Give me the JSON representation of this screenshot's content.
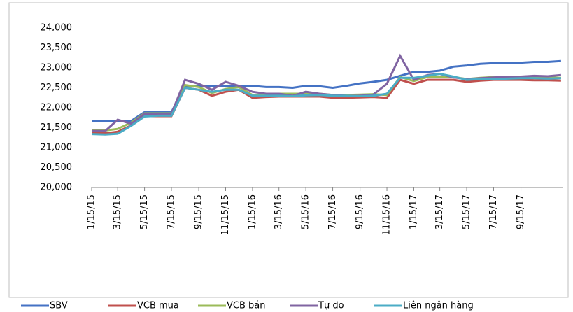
{
  "chart_data": {
    "type": "line",
    "x": [
      "2015-01-15",
      "2015-02-15",
      "2015-03-15",
      "2015-04-15",
      "2015-05-15",
      "2015-06-15",
      "2015-07-15",
      "2015-08-15",
      "2015-09-15",
      "2015-10-15",
      "2015-11-15",
      "2015-12-15",
      "2016-01-15",
      "2016-02-15",
      "2016-03-15",
      "2016-04-15",
      "2016-05-15",
      "2016-06-15",
      "2016-07-15",
      "2016-08-15",
      "2016-09-15",
      "2016-10-15",
      "2016-11-15",
      "2016-12-15",
      "2017-01-15",
      "2017-02-15",
      "2017-03-15",
      "2017-04-15",
      "2017-05-15",
      "2017-06-15",
      "2017-07-15",
      "2017-08-15",
      "2017-09-15",
      "2017-10-15",
      "2017-11-15",
      "2017-12-15"
    ],
    "series": [
      {
        "name": "SBV",
        "color": "#4472c4",
        "values": [
          21673,
          21673,
          21673,
          21673,
          21890,
          21890,
          21890,
          22550,
          22550,
          22550,
          22550,
          22550,
          22550,
          22520,
          22520,
          22500,
          22550,
          22540,
          22500,
          22550,
          22610,
          22650,
          22700,
          22800,
          22900,
          22900,
          22930,
          23030,
          23060,
          23100,
          23120,
          23130,
          23130,
          23150,
          23150,
          23170
        ]
      },
      {
        "name": "VCB mua",
        "color": "#c0504d",
        "values": [
          21360,
          21360,
          21400,
          21560,
          21790,
          21790,
          21790,
          22500,
          22450,
          22300,
          22400,
          22450,
          22250,
          22270,
          22280,
          22280,
          22280,
          22280,
          22250,
          22250,
          22260,
          22270,
          22250,
          22700,
          22600,
          22700,
          22700,
          22700,
          22650,
          22680,
          22700,
          22700,
          22700,
          22690,
          22690,
          22680
        ]
      },
      {
        "name": "VCB bán",
        "color": "#9bbb59",
        "values": [
          21430,
          21430,
          21470,
          21630,
          21860,
          21860,
          21860,
          22570,
          22520,
          22370,
          22470,
          22520,
          22320,
          22340,
          22350,
          22350,
          22350,
          22350,
          22320,
          22320,
          22330,
          22340,
          22320,
          22770,
          22670,
          22770,
          22770,
          22770,
          22720,
          22750,
          22770,
          22770,
          22770,
          22760,
          22760,
          22750
        ]
      },
      {
        "name": "Tự do",
        "color": "#8064a2",
        "values": [
          21420,
          21420,
          21700,
          21600,
          21850,
          21850,
          21850,
          22700,
          22600,
          22450,
          22650,
          22550,
          22400,
          22350,
          22350,
          22300,
          22400,
          22350,
          22320,
          22300,
          22300,
          22330,
          22600,
          23300,
          22700,
          22820,
          22850,
          22760,
          22720,
          22740,
          22760,
          22780,
          22780,
          22800,
          22790,
          22820
        ]
      },
      {
        "name": "Liên ngân hàng",
        "color": "#4bacc6",
        "values": [
          21340,
          21330,
          21350,
          21550,
          21780,
          21800,
          21800,
          22500,
          22450,
          22400,
          22450,
          22450,
          22300,
          22300,
          22300,
          22290,
          22310,
          22320,
          22300,
          22300,
          22290,
          22300,
          22350,
          22750,
          22750,
          22800,
          22850,
          22780,
          22700,
          22720,
          22720,
          22730,
          22740,
          22740,
          22730,
          22740
        ]
      }
    ],
    "ylim": [
      20000,
      24000
    ],
    "yticks": [
      {
        "value": 20000,
        "label": "20,000"
      },
      {
        "value": 20500,
        "label": "20,500"
      },
      {
        "value": 21000,
        "label": "21,000"
      },
      {
        "value": 21500,
        "label": "21,500"
      },
      {
        "value": 22000,
        "label": "22,000"
      },
      {
        "value": 22500,
        "label": "22,500"
      },
      {
        "value": 23000,
        "label": "23,000"
      },
      {
        "value": 23500,
        "label": "23,500"
      },
      {
        "value": 24000,
        "label": "24,000"
      }
    ],
    "xlim": [
      "2015-01-15",
      "2017-12-20"
    ],
    "xticks": [
      {
        "value": "2015-01-15",
        "label": "1/15/15"
      },
      {
        "value": "2015-03-15",
        "label": "3/15/15"
      },
      {
        "value": "2015-05-15",
        "label": "5/15/15"
      },
      {
        "value": "2015-07-15",
        "label": "7/15/15"
      },
      {
        "value": "2015-09-15",
        "label": "9/15/15"
      },
      {
        "value": "2015-11-15",
        "label": "11/15/15"
      },
      {
        "value": "2016-01-15",
        "label": "1/15/16"
      },
      {
        "value": "2016-03-15",
        "label": "3/15/16"
      },
      {
        "value": "2016-05-15",
        "label": "5/15/16"
      },
      {
        "value": "2016-07-15",
        "label": "7/15/16"
      },
      {
        "value": "2016-09-15",
        "label": "9/15/16"
      },
      {
        "value": "2016-11-15",
        "label": "11/15/16"
      },
      {
        "value": "2017-01-15",
        "label": "1/15/17"
      },
      {
        "value": "2017-03-15",
        "label": "3/15/17"
      },
      {
        "value": "2017-05-15",
        "label": "5/15/17"
      },
      {
        "value": "2017-07-15",
        "label": "7/15/17"
      },
      {
        "value": "2017-09-15",
        "label": "9/15/17"
      }
    ],
    "grid": false,
    "legend": "bottom"
  }
}
